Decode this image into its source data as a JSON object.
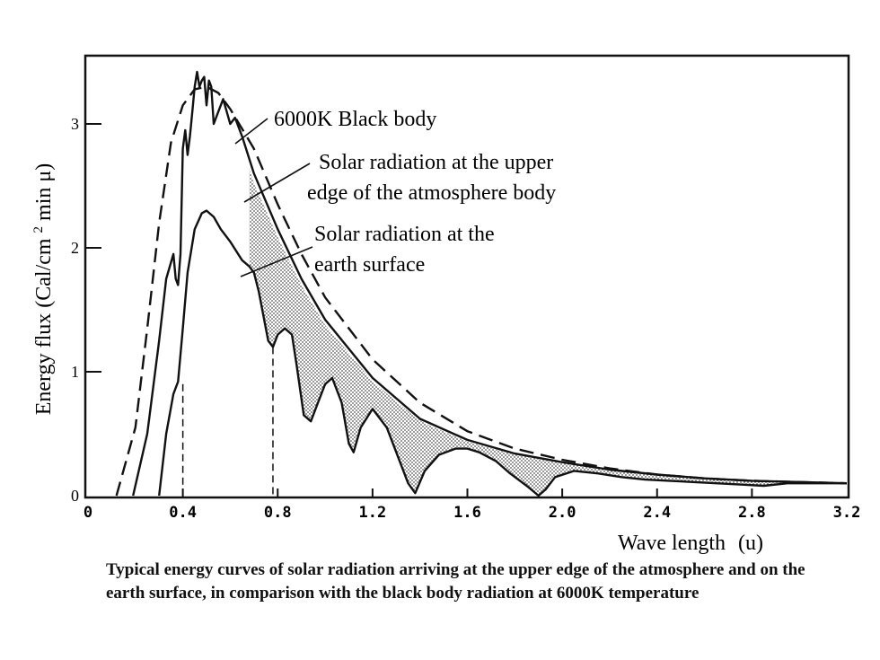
{
  "chart_data": {
    "type": "line",
    "xlabel": "Wave length",
    "xlabel_unit": "(u)",
    "ylabel": "Energy flux (Cal/cm",
    "ylabel_sup": "2",
    "ylabel_tail": "min μ)",
    "xlim": [
      0,
      3.2
    ],
    "ylim": [
      0,
      3.5
    ],
    "x_ticks": [
      "0",
      "0.4",
      "0.8",
      "1.2",
      "1.6",
      "2.0",
      "2.4",
      "2.8",
      "3.2"
    ],
    "y_ticks": [
      "0",
      "1",
      "2",
      "3"
    ],
    "grid": false,
    "series": [
      {
        "name": "6000K Black body",
        "style": "dashed",
        "x": [
          0.12,
          0.2,
          0.25,
          0.3,
          0.35,
          0.4,
          0.45,
          0.5,
          0.55,
          0.6,
          0.7,
          0.8,
          0.9,
          1.0,
          1.2,
          1.4,
          1.6,
          1.8,
          2.0,
          2.2,
          2.4,
          2.6,
          2.8,
          3.0,
          3.2
        ],
        "y": [
          0.0,
          0.55,
          1.35,
          2.2,
          2.85,
          3.15,
          3.28,
          3.3,
          3.25,
          3.12,
          2.8,
          2.35,
          1.95,
          1.6,
          1.1,
          0.75,
          0.52,
          0.38,
          0.29,
          0.22,
          0.17,
          0.14,
          0.12,
          0.11,
          0.1
        ]
      },
      {
        "name": "Solar radiation at the upper edge of the atmosphere body",
        "style": "solid",
        "x": [
          0.19,
          0.25,
          0.3,
          0.33,
          0.36,
          0.37,
          0.38,
          0.39,
          0.4,
          0.41,
          0.42,
          0.43,
          0.44,
          0.45,
          0.46,
          0.47,
          0.48,
          0.49,
          0.5,
          0.51,
          0.52,
          0.53,
          0.55,
          0.57,
          0.6,
          0.62,
          0.65,
          0.7,
          0.8,
          0.9,
          1.0,
          1.2,
          1.4,
          1.6,
          1.8,
          2.0,
          2.2,
          2.4,
          2.6,
          2.8,
          3.0,
          3.2
        ],
        "y": [
          0.0,
          0.5,
          1.25,
          1.75,
          1.95,
          1.75,
          1.7,
          1.95,
          2.8,
          2.95,
          2.75,
          2.9,
          3.1,
          3.3,
          3.42,
          3.3,
          3.35,
          3.38,
          3.15,
          3.35,
          3.3,
          3.0,
          3.1,
          3.2,
          3.0,
          3.05,
          2.9,
          2.6,
          2.15,
          1.75,
          1.42,
          0.95,
          0.62,
          0.45,
          0.34,
          0.27,
          0.21,
          0.17,
          0.14,
          0.12,
          0.11,
          0.1
        ]
      },
      {
        "name": "Solar radiation at the earth surface",
        "style": "solid",
        "x": [
          0.3,
          0.33,
          0.36,
          0.38,
          0.4,
          0.42,
          0.45,
          0.48,
          0.5,
          0.53,
          0.56,
          0.6,
          0.65,
          0.68,
          0.7,
          0.72,
          0.74,
          0.76,
          0.78,
          0.8,
          0.83,
          0.86,
          0.88,
          0.91,
          0.94,
          0.97,
          1.0,
          1.03,
          1.07,
          1.1,
          1.12,
          1.15,
          1.2,
          1.26,
          1.3,
          1.35,
          1.38,
          1.42,
          1.48,
          1.55,
          1.6,
          1.65,
          1.72,
          1.78,
          1.85,
          1.9,
          1.93,
          1.97,
          2.05,
          2.15,
          2.25,
          2.35,
          2.45,
          2.55,
          2.65,
          2.75,
          2.85,
          2.95,
          3.05,
          3.2
        ],
        "y": [
          0.0,
          0.5,
          0.82,
          0.92,
          1.35,
          1.8,
          2.15,
          2.28,
          2.3,
          2.25,
          2.15,
          2.05,
          1.9,
          1.85,
          1.8,
          1.65,
          1.45,
          1.25,
          1.2,
          1.3,
          1.35,
          1.3,
          1.05,
          0.65,
          0.6,
          0.75,
          0.9,
          0.95,
          0.75,
          0.42,
          0.35,
          0.55,
          0.7,
          0.55,
          0.35,
          0.1,
          0.02,
          0.2,
          0.33,
          0.38,
          0.38,
          0.35,
          0.28,
          0.18,
          0.08,
          0.0,
          0.05,
          0.15,
          0.2,
          0.18,
          0.15,
          0.13,
          0.12,
          0.11,
          0.1,
          0.09,
          0.08,
          0.1,
          0.1,
          0.1
        ]
      }
    ],
    "annotations": {
      "black_body": "6000K  Black body",
      "upper_line1": "Solar radiation at the upper",
      "upper_line2": "edge of the atmosphere body",
      "surface_line1": "Solar radiation at the",
      "surface_line2": "earth surface"
    }
  },
  "caption": "Typical energy curves of solar radiation arriving at the upper edge of the atmosphere and on the earth surface, in comparison with the black body radiation at 6000K temperature"
}
